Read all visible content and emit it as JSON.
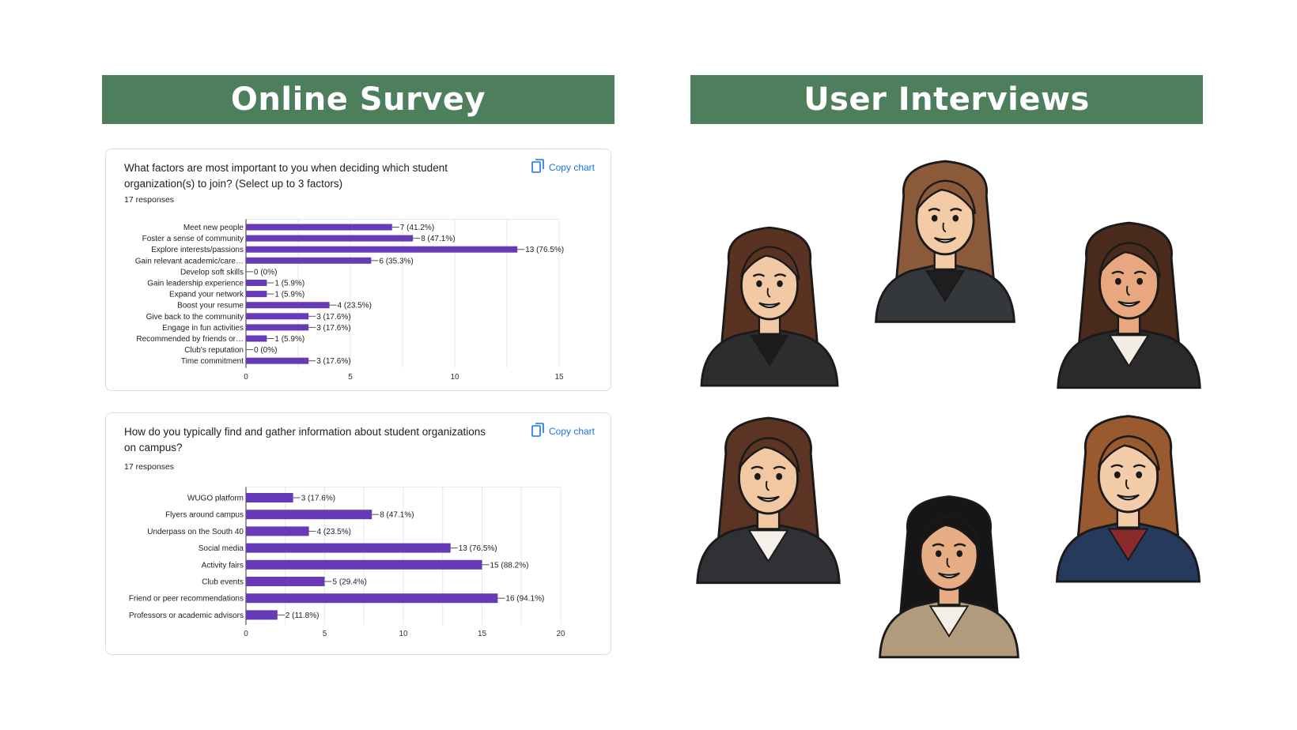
{
  "headers": {
    "left": "Online Survey",
    "right": "User Interviews"
  },
  "copy_label": "Copy chart",
  "colors": {
    "banner": "#4e7f5c",
    "bar": "#673ab7",
    "link": "#1a73e8"
  },
  "chart_data": [
    {
      "type": "bar",
      "orientation": "horizontal",
      "title": "What factors are most important to you when deciding which student organization(s) to join? (Select up to 3 factors)",
      "responses": "17 responses",
      "categories": [
        "Meet new people",
        "Foster a sense of community",
        "Explore interests/passions",
        "Gain relevant academic/care…",
        "Develop soft skills",
        "Gain leadership experience",
        "Expand your network",
        "Boost your resume",
        "Give back to the community",
        "Engage in fun activities",
        "Recommended by friends or…",
        "Club's reputation",
        "Time commitment"
      ],
      "values": [
        7,
        8,
        13,
        6,
        0,
        1,
        1,
        4,
        3,
        3,
        1,
        0,
        3
      ],
      "labels": [
        "7 (41.2%)",
        "8 (47.1%)",
        "13 (76.5%)",
        "6 (35.3%)",
        "0 (0%)",
        "1 (5.9%)",
        "1 (5.9%)",
        "4 (23.5%)",
        "3 (17.6%)",
        "3 (17.6%)",
        "1 (5.9%)",
        "0 (0%)",
        "3 (17.6%)"
      ],
      "xlim": [
        0,
        15
      ],
      "xticks": [
        "0",
        "5",
        "10",
        "15"
      ],
      "grid": true
    },
    {
      "type": "bar",
      "orientation": "horizontal",
      "title": "How do you typically find and gather information about student organizations on campus?",
      "responses": "17 responses",
      "categories": [
        "WUGO platform",
        "Flyers around campus",
        "Underpass on the South 40",
        "Social media",
        "Activity fairs",
        "Club events",
        "Friend or peer recommendations",
        "Professors or academic advisors"
      ],
      "values": [
        3,
        8,
        4,
        13,
        15,
        5,
        16,
        2
      ],
      "labels": [
        "3 (17.6%)",
        "8 (47.1%)",
        "4 (23.5%)",
        "13 (76.5%)",
        "15 (88.2%)",
        "5 (29.4%)",
        "16 (94.1%)",
        "2 (11.8%)"
      ],
      "xlim": [
        0,
        20
      ],
      "xticks": [
        "0",
        "5",
        "10",
        "15",
        "20"
      ],
      "grid": true
    }
  ],
  "avatars": [
    {
      "name": "interviewee-1",
      "hair": "#5a3222",
      "skin": "#f2c9a5",
      "jacket": "#2b2d2f",
      "inner": "#1c1c1c"
    },
    {
      "name": "interviewee-2",
      "hair": "#8a5a3a",
      "skin": "#f3cba6",
      "jacket": "#34383c",
      "inner": "#1e1e1e"
    },
    {
      "name": "interviewee-3",
      "hair": "#4a2a1a",
      "skin": "#e8a77e",
      "jacket": "#2a2a2a",
      "inner": "#f3ece3"
    },
    {
      "name": "interviewee-4",
      "hair": "#5b3424",
      "skin": "#f1c8a2",
      "jacket": "#2f3134",
      "inner": "#f5f0e8"
    },
    {
      "name": "interviewee-5",
      "hair": "#161616",
      "skin": "#e7ad84",
      "jacket": "#b29b7c",
      "inner": "#f4eee4"
    },
    {
      "name": "interviewee-6",
      "hair": "#9a5a30",
      "skin": "#f3cdaa",
      "jacket": "#253a5c",
      "inner": "#8a2a2a"
    }
  ]
}
